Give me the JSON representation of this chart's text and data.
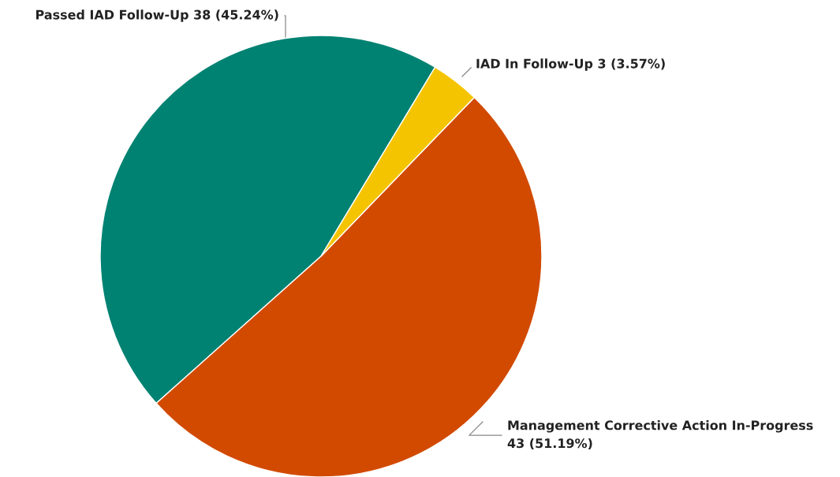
{
  "chart_data": {
    "type": "pie",
    "categories": [
      "Passed IAD Follow-Up",
      "Management Corrective Action In-Progress",
      "IAD In Follow-Up"
    ],
    "values": [
      38,
      43,
      3
    ],
    "colors": [
      "#008272",
      "#d24a00",
      "#f5c400"
    ],
    "value_labels": [
      "38 (45.24%)",
      "43 (51.19%)",
      "3 (3.57%)"
    ],
    "legend": false
  }
}
